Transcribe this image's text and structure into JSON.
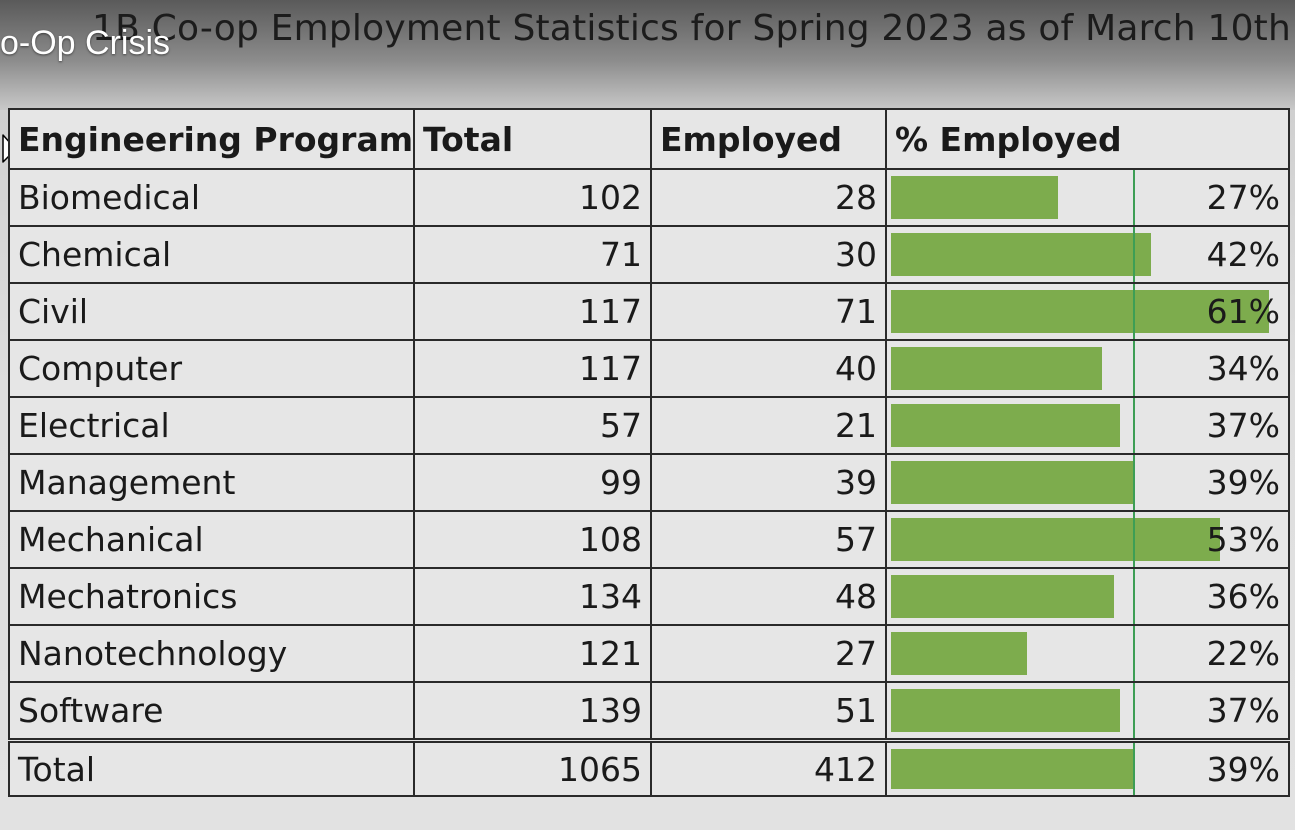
{
  "video": {
    "title": "o-Op Crisis"
  },
  "slide": {
    "title": "1B Co-op Employment Statistics for Spring 2023 as of March 10th"
  },
  "table": {
    "headers": [
      "Engineering Program",
      "Total",
      "Employed",
      "% Employed"
    ],
    "rows": [
      {
        "program": "Biomedical",
        "total": "102",
        "employed": "28",
        "pct_label": "27%",
        "pct": 27
      },
      {
        "program": "Chemical",
        "total": "71",
        "employed": "30",
        "pct_label": "42%",
        "pct": 42
      },
      {
        "program": "Civil",
        "total": "117",
        "employed": "71",
        "pct_label": "61%",
        "pct": 61
      },
      {
        "program": "Computer",
        "total": "117",
        "employed": "40",
        "pct_label": "34%",
        "pct": 34
      },
      {
        "program": "Electrical",
        "total": "57",
        "employed": "21",
        "pct_label": "37%",
        "pct": 37
      },
      {
        "program": "Management",
        "total": "99",
        "employed": "39",
        "pct_label": "39%",
        "pct": 39
      },
      {
        "program": "Mechanical",
        "total": "108",
        "employed": "57",
        "pct_label": "53%",
        "pct": 53
      },
      {
        "program": "Mechatronics",
        "total": "134",
        "employed": "48",
        "pct_label": "36%",
        "pct": 36
      },
      {
        "program": "Nanotechnology",
        "total": "121",
        "employed": "27",
        "pct_label": "22%",
        "pct": 22
      },
      {
        "program": "Software",
        "total": "139",
        "employed": "51",
        "pct_label": "37%",
        "pct": 37
      }
    ],
    "total_row": {
      "program": "Total",
      "total": "1065",
      "employed": "412",
      "pct_label": "39%",
      "pct": 39
    },
    "reference_pct": 39,
    "bar_color": "#7dac4d",
    "reference_line_color": "#3d9e55"
  }
}
